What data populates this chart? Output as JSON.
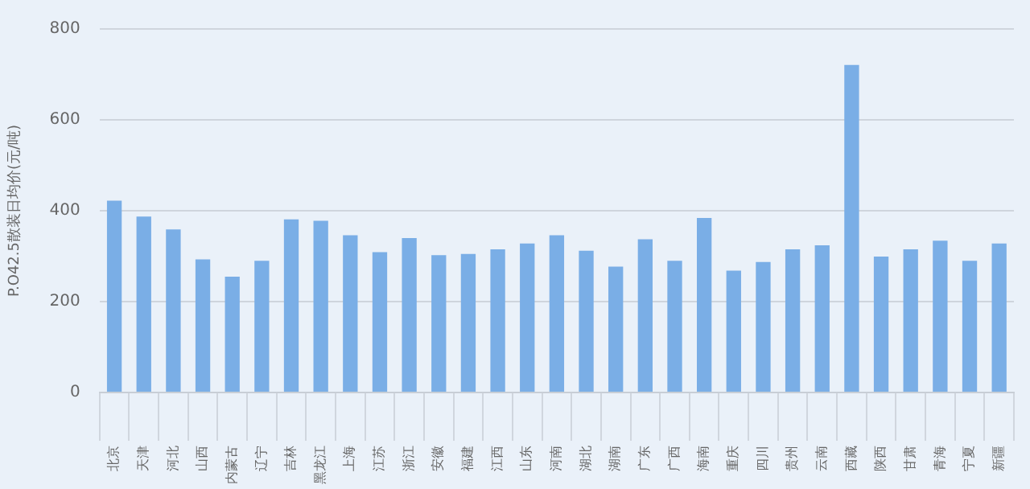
{
  "chart_data": {
    "type": "bar",
    "ylabel": "P.O42.5散装日均价(元/吨)",
    "categories": [
      "北京",
      "天津",
      "河北",
      "山西",
      "内蒙古",
      "辽宁",
      "吉林",
      "黑龙江",
      "上海",
      "江苏",
      "浙江",
      "安徽",
      "福建",
      "江西",
      "山东",
      "河南",
      "湖北",
      "湖南",
      "广东",
      "广西",
      "海南",
      "重庆",
      "四川",
      "贵州",
      "云南",
      "西藏",
      "陕西",
      "甘肃",
      "青海",
      "宁夏",
      "新疆"
    ],
    "values": [
      422,
      387,
      359,
      293,
      255,
      290,
      381,
      378,
      346,
      309,
      340,
      302,
      305,
      315,
      328,
      346,
      312,
      277,
      337,
      290,
      384,
      268,
      287,
      315,
      324,
      721,
      299,
      315,
      334,
      290,
      328
    ],
    "color": "#7aaee6",
    "ylim": [
      0,
      800
    ],
    "yticks": [
      0,
      200,
      400,
      600,
      800
    ],
    "grid": "y",
    "legend": false
  }
}
